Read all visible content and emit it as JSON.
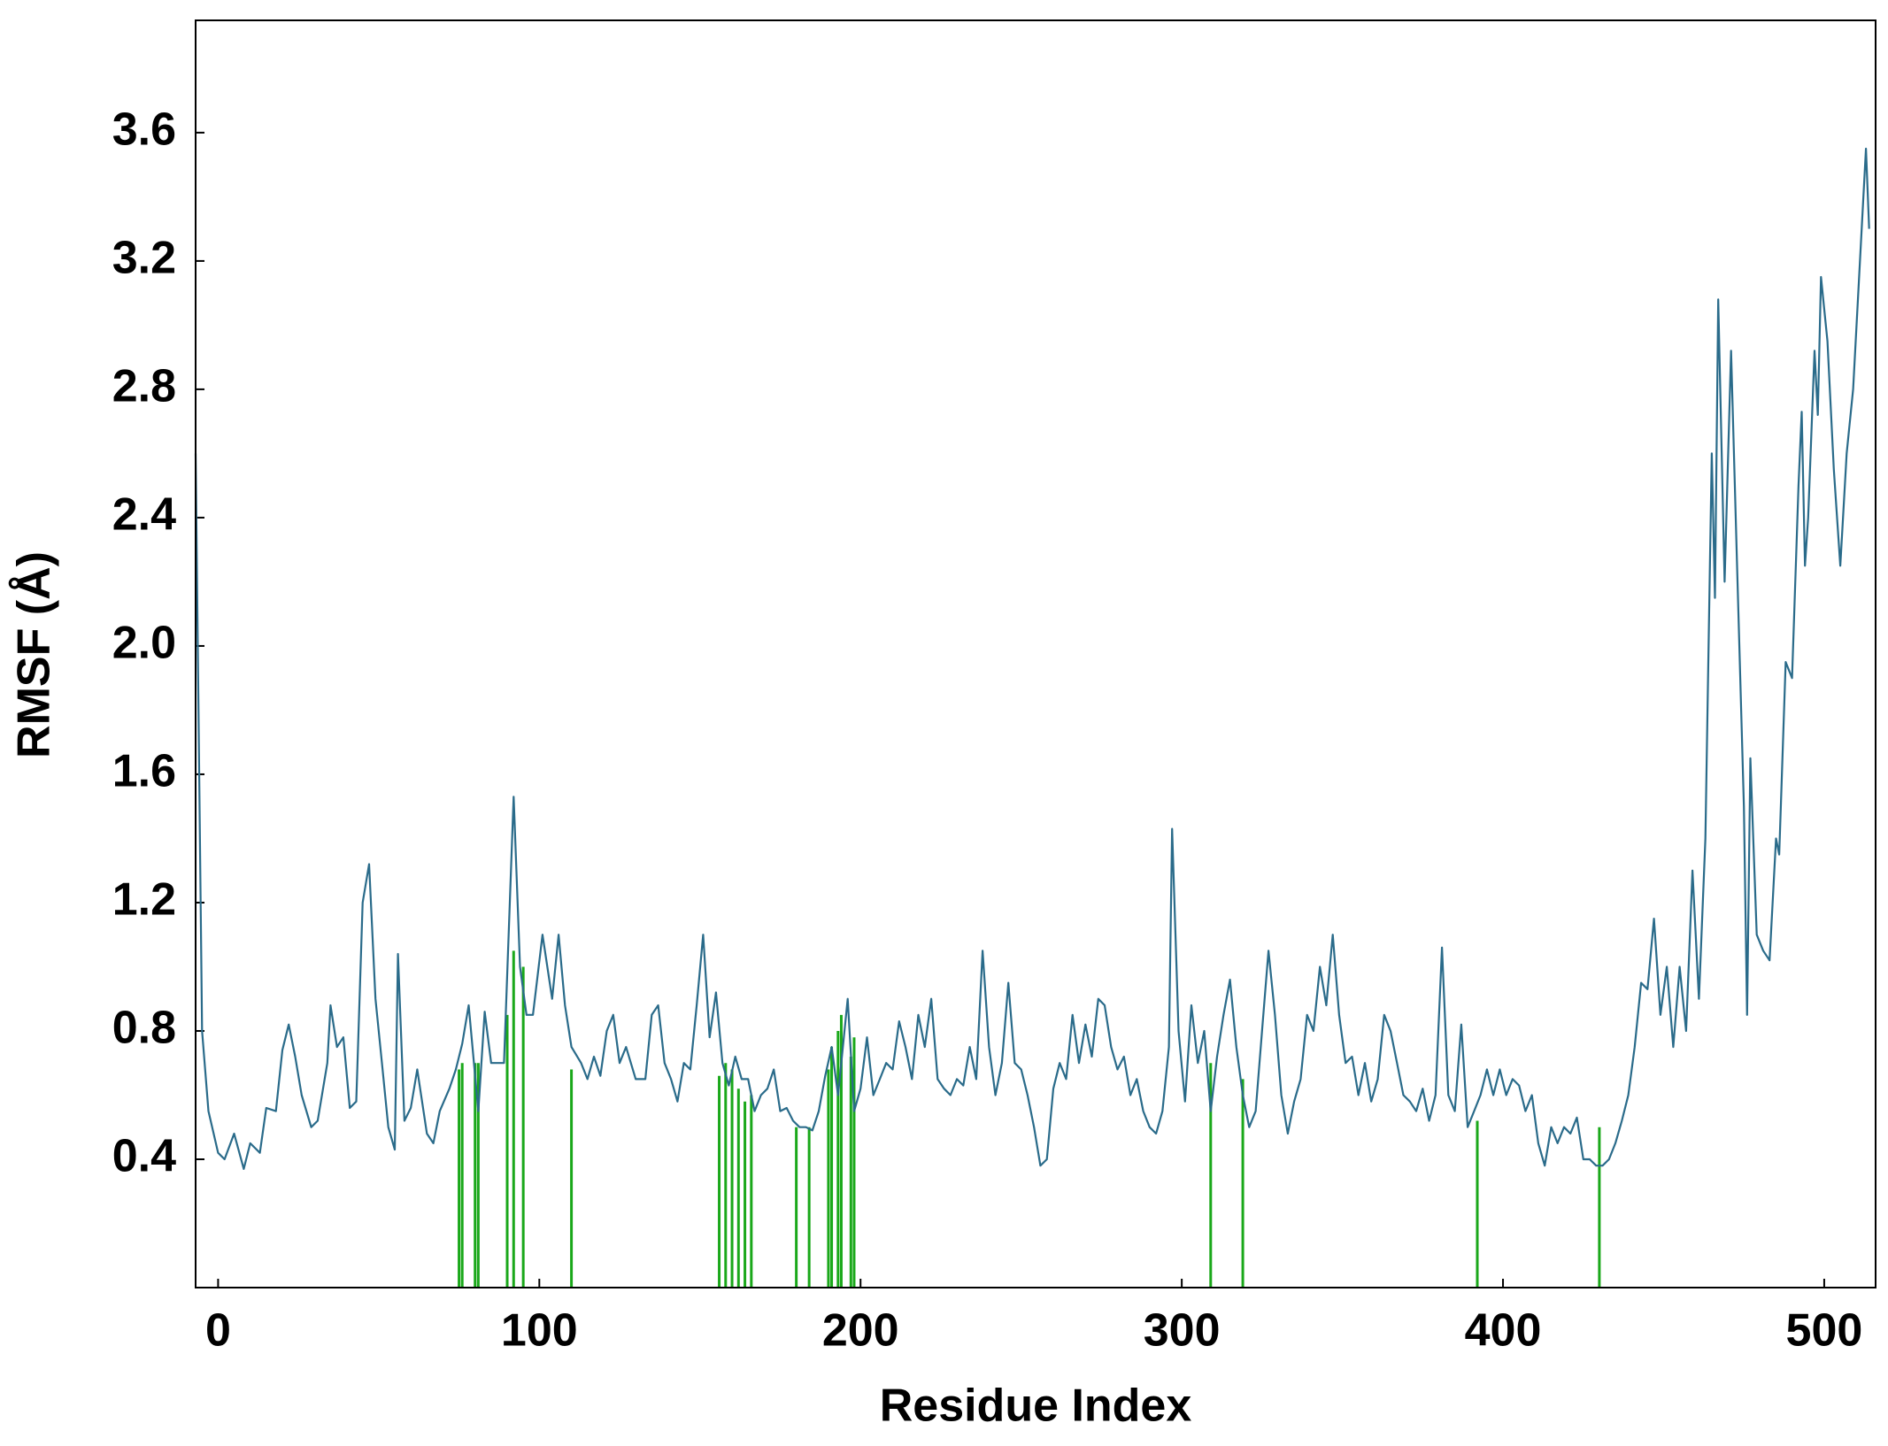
{
  "chart_data": {
    "type": "line",
    "xlabel": "Residue Index",
    "ylabel": "RMSF (Å)",
    "color": "#2a6b8a",
    "x": [
      -7,
      -5,
      -3,
      0,
      2,
      5,
      8,
      10,
      13,
      15,
      18,
      20,
      22,
      24,
      26,
      29,
      31,
      34,
      35,
      37,
      39,
      41,
      43,
      45,
      47,
      49,
      51,
      53,
      55,
      56,
      58,
      60,
      62,
      65,
      67,
      69,
      72,
      74,
      76,
      78,
      81,
      83,
      85,
      87,
      89,
      92,
      94,
      96,
      98,
      101,
      104,
      106,
      108,
      110,
      113,
      115,
      117,
      119,
      121,
      123,
      125,
      127,
      130,
      133,
      135,
      137,
      139,
      141,
      143,
      145,
      147,
      149,
      151,
      153,
      155,
      157,
      159,
      161,
      163,
      165,
      167,
      169,
      171,
      173,
      175,
      177,
      179,
      181,
      183,
      185,
      187,
      189,
      191,
      193,
      196,
      198,
      200,
      202,
      204,
      206,
      208,
      210,
      212,
      214,
      216,
      218,
      220,
      222,
      224,
      226,
      228,
      230,
      232,
      234,
      236,
      238,
      240,
      242,
      244,
      246,
      248,
      250,
      252,
      254,
      256,
      258,
      260,
      262,
      264,
      266,
      268,
      270,
      272,
      274,
      276,
      278,
      280,
      282,
      284,
      286,
      288,
      290,
      292,
      294,
      296,
      297,
      299,
      301,
      303,
      305,
      307,
      309,
      311,
      313,
      315,
      317,
      319,
      321,
      323,
      325,
      327,
      329,
      331,
      333,
      335,
      337,
      339,
      341,
      343,
      345,
      347,
      349,
      351,
      353,
      355,
      357,
      359,
      361,
      363,
      365,
      367,
      369,
      371,
      373,
      375,
      377,
      379,
      381,
      383,
      385,
      387,
      389,
      391,
      393,
      395,
      397,
      399,
      401,
      403,
      405,
      407,
      409,
      411,
      413,
      415,
      417,
      419,
      421,
      423,
      425,
      427,
      429,
      431,
      433,
      435,
      437,
      439,
      441,
      443,
      445,
      447,
      449,
      451,
      453,
      455,
      457,
      459,
      461,
      463,
      465,
      466,
      467,
      469,
      471,
      473,
      475,
      476,
      477,
      479,
      481,
      483,
      485,
      486,
      488,
      490,
      492,
      493,
      494,
      495,
      497,
      498,
      499,
      501,
      503,
      505,
      507,
      509,
      513,
      514
    ],
    "values": [
      2.6,
      0.8,
      0.55,
      0.42,
      0.4,
      0.48,
      0.37,
      0.45,
      0.42,
      0.56,
      0.55,
      0.74,
      0.82,
      0.72,
      0.6,
      0.5,
      0.52,
      0.7,
      0.88,
      0.75,
      0.78,
      0.56,
      0.58,
      1.2,
      1.32,
      0.9,
      0.7,
      0.5,
      0.43,
      1.04,
      0.52,
      0.56,
      0.68,
      0.48,
      0.45,
      0.55,
      0.62,
      0.68,
      0.76,
      0.88,
      0.55,
      0.86,
      0.7,
      0.7,
      0.7,
      1.53,
      1.0,
      0.85,
      0.85,
      1.1,
      0.9,
      1.1,
      0.88,
      0.75,
      0.7,
      0.65,
      0.72,
      0.66,
      0.8,
      0.85,
      0.7,
      0.75,
      0.65,
      0.65,
      0.85,
      0.88,
      0.7,
      0.65,
      0.58,
      0.7,
      0.68,
      0.88,
      1.1,
      0.78,
      0.92,
      0.7,
      0.63,
      0.72,
      0.65,
      0.65,
      0.55,
      0.6,
      0.62,
      0.68,
      0.55,
      0.56,
      0.52,
      0.5,
      0.5,
      0.49,
      0.55,
      0.66,
      0.75,
      0.6,
      0.9,
      0.55,
      0.62,
      0.78,
      0.6,
      0.65,
      0.7,
      0.68,
      0.83,
      0.75,
      0.65,
      0.85,
      0.75,
      0.9,
      0.65,
      0.62,
      0.6,
      0.65,
      0.63,
      0.75,
      0.65,
      1.05,
      0.75,
      0.6,
      0.7,
      0.95,
      0.7,
      0.68,
      0.6,
      0.5,
      0.38,
      0.4,
      0.62,
      0.7,
      0.65,
      0.85,
      0.7,
      0.82,
      0.72,
      0.9,
      0.88,
      0.75,
      0.68,
      0.72,
      0.6,
      0.65,
      0.55,
      0.5,
      0.48,
      0.55,
      0.75,
      1.43,
      0.8,
      0.58,
      0.88,
      0.7,
      0.8,
      0.55,
      0.72,
      0.85,
      0.96,
      0.75,
      0.6,
      0.5,
      0.55,
      0.8,
      1.05,
      0.85,
      0.6,
      0.48,
      0.58,
      0.65,
      0.85,
      0.8,
      1.0,
      0.88,
      1.1,
      0.85,
      0.7,
      0.72,
      0.6,
      0.7,
      0.58,
      0.65,
      0.85,
      0.8,
      0.7,
      0.6,
      0.58,
      0.55,
      0.62,
      0.52,
      0.6,
      1.06,
      0.6,
      0.55,
      0.82,
      0.5,
      0.55,
      0.6,
      0.68,
      0.6,
      0.68,
      0.6,
      0.65,
      0.63,
      0.55,
      0.6,
      0.45,
      0.38,
      0.5,
      0.45,
      0.5,
      0.48,
      0.53,
      0.4,
      0.4,
      0.38,
      0.38,
      0.4,
      0.45,
      0.52,
      0.6,
      0.75,
      0.95,
      0.93,
      1.15,
      0.85,
      1.0,
      0.75,
      1.0,
      0.8,
      1.3,
      0.9,
      1.4,
      2.6,
      2.15,
      3.08,
      2.2,
      2.92,
      2.2,
      1.5,
      0.85,
      1.65,
      1.1,
      1.05,
      1.02,
      1.4,
      1.35,
      1.95,
      1.9,
      2.5,
      2.73,
      2.25,
      2.4,
      2.92,
      2.72,
      3.15,
      2.95,
      2.55,
      2.25,
      2.6,
      2.8,
      3.55,
      3.3
    ],
    "bars": {
      "color": "#1aa81a",
      "x": [
        75,
        76,
        80,
        81,
        90,
        92,
        95,
        110,
        156,
        158,
        160,
        162,
        164,
        166,
        180,
        184,
        190,
        191,
        193,
        194,
        197,
        198,
        309,
        319,
        392,
        430
      ],
      "values": [
        0.68,
        0.7,
        0.7,
        0.7,
        0.85,
        1.05,
        1.0,
        0.68,
        0.66,
        0.7,
        0.68,
        0.62,
        0.58,
        0.6,
        0.5,
        0.5,
        0.68,
        0.75,
        0.8,
        0.85,
        0.72,
        0.78,
        0.7,
        0.65,
        0.52,
        0.5
      ]
    },
    "xlim": [
      -7,
      516
    ],
    "ylim": [
      0,
      3.95
    ],
    "xticks": [
      0,
      100,
      200,
      300,
      400,
      500
    ],
    "yticks": [
      0.4,
      0.8,
      1.2,
      1.6,
      {
        "value": 2,
        "label": "2.0"
      },
      2.4,
      2.8,
      3.2,
      3.6
    ],
    "grid": false
  }
}
